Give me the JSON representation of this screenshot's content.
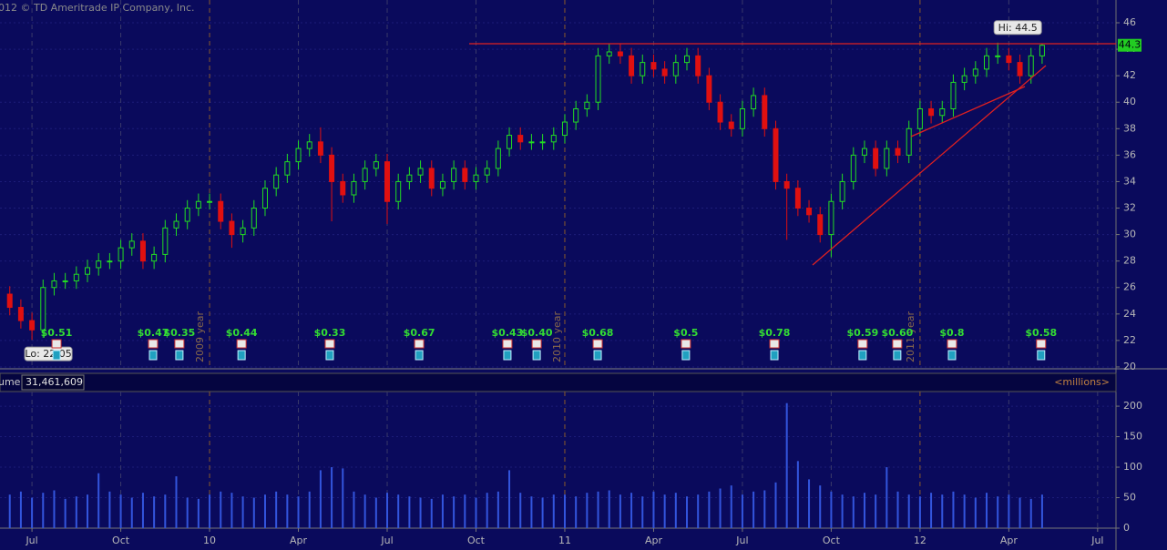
{
  "header": {
    "copyright": "012 © TD Ameritrade IP Company, Inc."
  },
  "chart_data": {
    "type": "candlestick",
    "x": [
      5.25,
      5.625,
      6,
      6.375,
      6.75,
      7.125,
      7.5,
      7.875,
      8.25,
      8.625,
      9,
      9.375,
      9.75,
      10.125,
      10.5,
      10.875,
      11.25,
      11.625,
      12,
      12.375,
      12.75,
      13.125,
      13.5,
      13.875,
      14.25,
      14.625,
      15,
      15.375,
      15.75,
      16.125,
      16.5,
      16.875,
      17.25,
      17.625,
      18,
      18.375,
      18.75,
      19.125,
      19.5,
      19.875,
      20.25,
      20.625,
      21,
      21.375,
      21.75,
      22.125,
      22.5,
      22.875,
      23.25,
      23.625,
      24,
      24.375,
      24.75,
      25.125,
      25.5,
      25.875,
      26.25,
      26.625,
      27,
      27.375,
      27.75,
      28.125,
      28.5,
      28.875,
      29.25,
      29.625,
      30,
      30.375,
      30.75,
      31.125,
      31.5,
      31.875,
      32.25,
      32.625,
      33,
      33.375,
      33.75,
      34.125,
      34.5,
      34.875,
      35.25,
      35.625,
      36,
      36.375,
      36.75,
      37.125,
      37.5,
      37.875,
      38.25,
      38.625,
      39,
      39.375,
      39.75,
      40.125
    ],
    "open": [
      25.5,
      24.5,
      23.5,
      22.8,
      26,
      26.5,
      26.5,
      27,
      27.5,
      28,
      28,
      29,
      29.5,
      28,
      28.5,
      30.5,
      31,
      32,
      32.5,
      32.5,
      31,
      30,
      30.5,
      32,
      33.5,
      34.5,
      35.5,
      36.5,
      37,
      36,
      34,
      33,
      34,
      35,
      35.5,
      32.5,
      34,
      34.5,
      35,
      33.5,
      34,
      35,
      34,
      34.5,
      35,
      36.5,
      37.5,
      37,
      37,
      37,
      37.5,
      38.5,
      39.5,
      40,
      43.5,
      43.8,
      43.5,
      42,
      43,
      42.5,
      42,
      43,
      43.5,
      42,
      40,
      38.5,
      38,
      39.5,
      40.5,
      38,
      34,
      33.5,
      32,
      31.5,
      30,
      32.5,
      34,
      36,
      36.5,
      35,
      36.5,
      36,
      38,
      39.5,
      39,
      39.5,
      41.5,
      42,
      42.5,
      43.5,
      43.5,
      43,
      42,
      43.5
    ],
    "high": [
      26.1,
      25.1,
      24.1,
      26.6,
      27.1,
      27.1,
      27.6,
      28.1,
      28.6,
      28.6,
      29.6,
      30.1,
      30.1,
      29.1,
      31.1,
      31.6,
      32.6,
      33.1,
      33.1,
      33.1,
      31.6,
      31.1,
      32.6,
      34.1,
      35.1,
      36.1,
      37.1,
      37.6,
      38.1,
      36.6,
      34.6,
      34.6,
      35.6,
      36.1,
      36.1,
      34.6,
      35.1,
      35.6,
      35.6,
      34.6,
      35.6,
      35.6,
      35.1,
      35.6,
      37.1,
      38.1,
      38.1,
      37.6,
      37.6,
      38.1,
      39.1,
      40.1,
      40.6,
      44.1,
      44.4,
      44.4,
      44.1,
      43.6,
      43.6,
      43.1,
      43.6,
      44.1,
      44.1,
      42.6,
      40.6,
      39.1,
      40.1,
      41.1,
      41.1,
      38.6,
      34.6,
      34.1,
      32.6,
      32.1,
      33.1,
      34.6,
      36.6,
      37.1,
      37.1,
      37.1,
      37.1,
      38.6,
      40.1,
      40.1,
      40.1,
      42.1,
      42.6,
      43.1,
      44.1,
      44.5,
      44.1,
      43.6,
      44.1,
      44.4
    ],
    "low": [
      23.9,
      22.9,
      22.05,
      22.2,
      25.4,
      25.9,
      25.9,
      26.4,
      26.9,
      27.4,
      27.4,
      28.4,
      27.4,
      27.4,
      27.9,
      29.9,
      30.4,
      31.4,
      31.9,
      30.4,
      29.0,
      29.4,
      29.9,
      31.4,
      32.9,
      33.9,
      34.9,
      35.9,
      35.4,
      31.0,
      32.4,
      32.4,
      33.4,
      34.4,
      30.8,
      31.9,
      33.4,
      33.9,
      32.9,
      32.9,
      33.4,
      33.4,
      33.4,
      33.9,
      34.4,
      35.9,
      36.4,
      36.4,
      36.4,
      36.4,
      36.9,
      37.9,
      38.9,
      39.4,
      42.9,
      42.9,
      41.4,
      41.4,
      41.9,
      41.4,
      41.4,
      42.4,
      41.4,
      39.4,
      37.9,
      37.4,
      37.4,
      38.9,
      37.4,
      33.4,
      29.6,
      31.4,
      30.9,
      29.4,
      28.3,
      31.9,
      33.4,
      35.4,
      34.4,
      34.4,
      35.4,
      35.4,
      37.4,
      38.4,
      38.4,
      38.9,
      40.9,
      41.4,
      41.9,
      42.9,
      42.4,
      41.4,
      41.4,
      42.9
    ],
    "close": [
      24.5,
      23.5,
      22.8,
      26,
      26.5,
      26.5,
      27,
      27.5,
      28,
      28,
      29,
      29.5,
      28,
      28.5,
      30.5,
      31,
      32,
      32.5,
      32.5,
      31,
      30,
      30.5,
      32,
      33.5,
      34.5,
      35.5,
      36.5,
      37,
      36,
      34,
      33,
      34,
      35,
      35.5,
      32.5,
      34,
      34.5,
      35,
      33.5,
      34,
      35,
      34,
      34.5,
      35,
      36.5,
      37.5,
      37,
      37,
      37,
      37.5,
      38.5,
      39.5,
      40,
      43.5,
      43.8,
      43.5,
      42,
      43,
      42.5,
      42,
      43,
      43.5,
      42,
      40,
      38.5,
      38,
      39.5,
      40.5,
      38,
      34,
      33.5,
      32,
      31.5,
      30,
      32.5,
      34,
      36,
      36.5,
      35,
      36.5,
      36,
      38,
      39.5,
      39,
      39.5,
      41.5,
      42,
      42.5,
      43.5,
      43.5,
      43,
      42,
      43.5,
      44.3
    ],
    "up_color": "#22dd22",
    "down_color": "#e01010",
    "xlim": [
      4.92,
      42.62
    ],
    "ylim": [
      19.86,
      47.72
    ],
    "yticks": [
      20,
      22,
      24,
      26,
      28,
      30,
      32,
      34,
      36,
      38,
      40,
      42,
      44,
      46
    ],
    "xticks": [
      {
        "value": 6,
        "label": "Jul"
      },
      {
        "value": 9,
        "label": "Oct"
      },
      {
        "value": 12,
        "label": "10"
      },
      {
        "value": 15,
        "label": "Apr"
      },
      {
        "value": 18,
        "label": "Jul"
      },
      {
        "value": 21,
        "label": "Oct"
      },
      {
        "value": 24,
        "label": "11"
      },
      {
        "value": 27,
        "label": "Apr"
      },
      {
        "value": 30,
        "label": "Jul"
      },
      {
        "value": 33,
        "label": "Oct"
      },
      {
        "value": 36,
        "label": "12"
      },
      {
        "value": 39,
        "label": "Apr"
      },
      {
        "value": 42,
        "label": "Jul"
      }
    ],
    "grid": true,
    "hi_label": "Hi: 44.5",
    "lo_label": "Lo: 22.05",
    "year_labels": [
      {
        "x": 11.69,
        "label": "2009 year"
      },
      {
        "x": 23.75,
        "label": "2010 year"
      },
      {
        "x": 35.69,
        "label": "2011 year"
      }
    ],
    "dividends": [
      {
        "x": 6.83,
        "label": "$0.51"
      },
      {
        "x": 10.09,
        "label": "$0.47"
      },
      {
        "x": 10.98,
        "label": "$0.35"
      },
      {
        "x": 13.08,
        "label": "$0.44"
      },
      {
        "x": 16.06,
        "label": "$0.33"
      },
      {
        "x": 19.08,
        "label": "$0.67"
      },
      {
        "x": 22.06,
        "label": "$0.43"
      },
      {
        "x": 23.05,
        "label": "$0.40"
      },
      {
        "x": 25.11,
        "label": "$0.68"
      },
      {
        "x": 28.09,
        "label": "$0.5"
      },
      {
        "x": 31.08,
        "label": "$0.78"
      },
      {
        "x": 34.06,
        "label": "$0.59"
      },
      {
        "x": 35.23,
        "label": "$0.60"
      },
      {
        "x": 37.08,
        "label": "$0.8"
      },
      {
        "x": 40.09,
        "label": "$0.58"
      }
    ],
    "volume": {
      "title": "ume",
      "total": "31,461,609",
      "unit_label": "<millions>",
      "color": "#3355dd",
      "values": [
        55,
        60,
        50,
        58,
        62,
        48,
        52,
        55,
        90,
        60,
        55,
        50,
        58,
        52,
        55,
        85,
        50,
        48,
        55,
        60,
        58,
        52,
        50,
        55,
        60,
        55,
        52,
        60,
        95,
        100,
        98,
        60,
        55,
        50,
        58,
        55,
        52,
        50,
        48,
        55,
        52,
        55,
        50,
        58,
        60,
        95,
        58,
        52,
        50,
        55,
        55,
        52,
        58,
        60,
        62,
        55,
        58,
        52,
        60,
        55,
        58,
        52,
        55,
        60,
        65,
        70,
        55,
        60,
        62,
        75,
        205,
        110,
        80,
        70,
        60,
        55,
        52,
        58,
        55,
        100,
        60,
        55,
        52,
        58,
        55,
        60,
        55,
        50,
        58,
        52,
        55,
        50,
        48,
        55
      ],
      "ylim": [
        0,
        224
      ],
      "yticks": [
        0,
        50,
        100,
        150,
        200
      ]
    }
  }
}
